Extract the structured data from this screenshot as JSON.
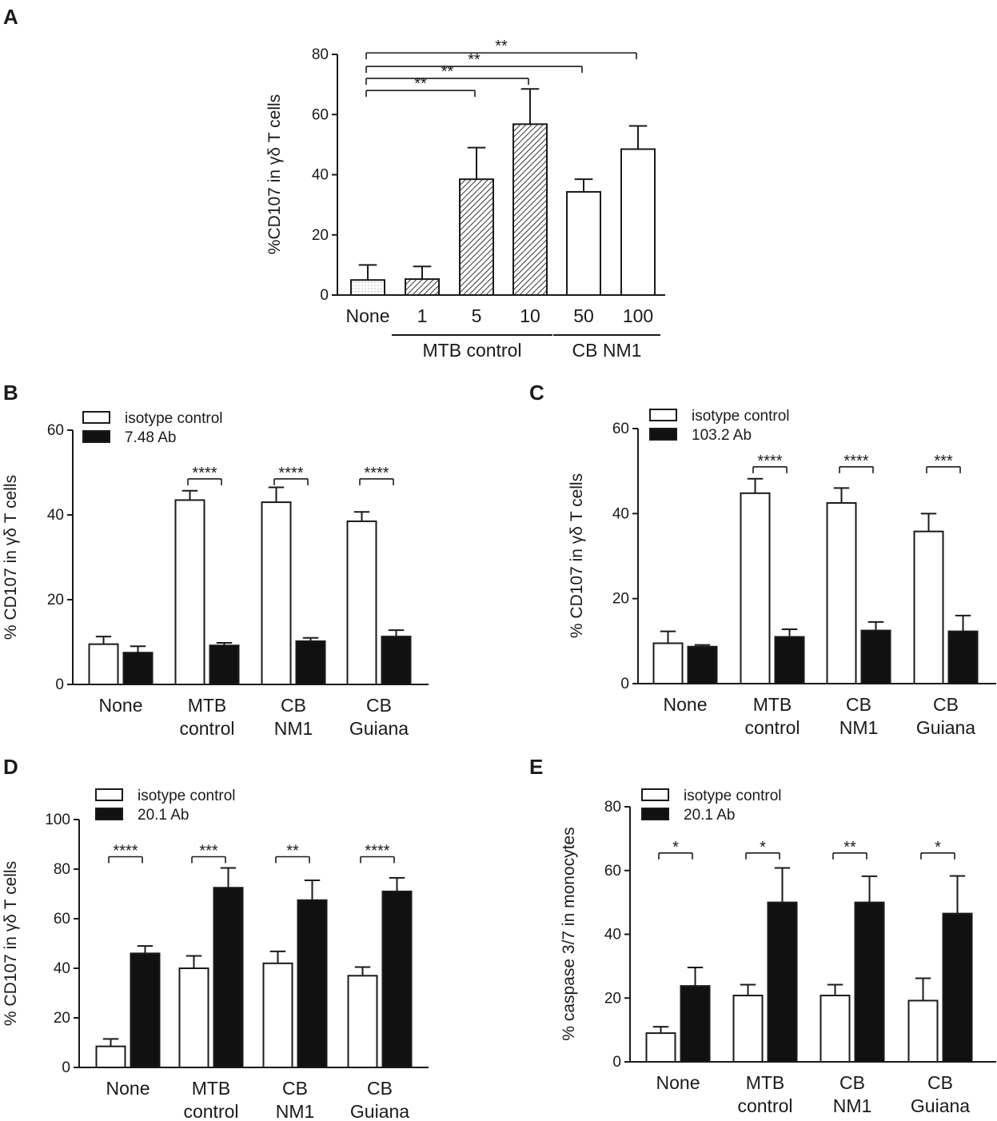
{
  "figure": {
    "panels": [
      "A",
      "B",
      "C",
      "D",
      "E"
    ]
  },
  "colors": {
    "ink": "#1a1a1a",
    "white_bar": "#ffffff",
    "black_bar": "#111111",
    "hatch": "#333333"
  },
  "chart_data": [
    {
      "panel": "A",
      "type": "bar",
      "ylabel": "%CD107 in γδ T cells",
      "ylim": [
        0,
        80
      ],
      "yticks": [
        0,
        20,
        40,
        60,
        80
      ],
      "categories": [
        "None",
        "1",
        "5",
        "10",
        "50",
        "100"
      ],
      "values": [
        5,
        5.3,
        38.5,
        56.8,
        34.3,
        48.5
      ],
      "errors": [
        5,
        4.2,
        10.5,
        11.7,
        4.2,
        7.7
      ],
      "fills": [
        "dotted",
        "hatch",
        "hatch",
        "hatch",
        "white",
        "white"
      ],
      "groups": [
        {
          "label": "MTB control",
          "from": 1,
          "to": 3
        },
        {
          "label": "CB NM1",
          "from": 4,
          "to": 5
        }
      ],
      "significance": [
        {
          "from": 0,
          "to": 2,
          "stars": "**",
          "level": 68
        },
        {
          "from": 0,
          "to": 3,
          "stars": "**",
          "level": 72
        },
        {
          "from": 0,
          "to": 4,
          "stars": "**",
          "level": 76
        },
        {
          "from": 0,
          "to": 5,
          "stars": "**",
          "level": 80.5
        }
      ]
    },
    {
      "panel": "B",
      "type": "bar",
      "ylabel": "% CD107 in γδ T cells",
      "ylim": [
        0,
        60
      ],
      "yticks": [
        0,
        20,
        40,
        60
      ],
      "categories": [
        [
          "None"
        ],
        [
          "MTB",
          "control"
        ],
        [
          "CB",
          "NM1"
        ],
        [
          "CB",
          "Guiana"
        ]
      ],
      "series": [
        {
          "name": "isotype control",
          "values": [
            9.5,
            43.5,
            43,
            38.5
          ],
          "errors": [
            1.8,
            2.2,
            3.5,
            2.2
          ]
        },
        {
          "name": "7.48 Ab",
          "values": [
            7.5,
            9.2,
            10.2,
            11.3
          ],
          "errors": [
            1.5,
            0.6,
            0.8,
            1.5
          ]
        }
      ],
      "significance": [
        {
          "group": 1,
          "stars": "****",
          "level": 48.5
        },
        {
          "group": 2,
          "stars": "****",
          "level": 48.5
        },
        {
          "group": 3,
          "stars": "****",
          "level": 48.5
        }
      ]
    },
    {
      "panel": "C",
      "type": "bar",
      "ylabel": "% CD107 in γδ T cells",
      "ylim": [
        0,
        60
      ],
      "yticks": [
        0,
        20,
        40,
        60
      ],
      "categories": [
        [
          "None"
        ],
        [
          "MTB",
          "control"
        ],
        [
          "CB",
          "NM1"
        ],
        [
          "CB",
          "Guiana"
        ]
      ],
      "series": [
        {
          "name": "isotype control",
          "values": [
            9.5,
            44.8,
            42.5,
            35.8
          ],
          "errors": [
            2.8,
            3.4,
            3.5,
            4.2
          ]
        },
        {
          "name": "103.2 Ab",
          "values": [
            8.7,
            11,
            12.5,
            12.3
          ],
          "errors": [
            0.4,
            1.8,
            2,
            3.7
          ]
        }
      ],
      "significance": [
        {
          "group": 1,
          "stars": "****",
          "level": 51
        },
        {
          "group": 2,
          "stars": "****",
          "level": 51
        },
        {
          "group": 3,
          "stars": "***",
          "level": 51
        }
      ]
    },
    {
      "panel": "D",
      "type": "bar",
      "ylabel": "% CD107 in γδ T cells",
      "ylim": [
        0,
        100
      ],
      "yticks": [
        0,
        20,
        40,
        60,
        80,
        100
      ],
      "categories": [
        [
          "None"
        ],
        [
          "MTB",
          "control"
        ],
        [
          "CB",
          "NM1"
        ],
        [
          "CB",
          "Guiana"
        ]
      ],
      "series": [
        {
          "name": "isotype control",
          "values": [
            8.5,
            40,
            42,
            37
          ],
          "errors": [
            3,
            5,
            4.8,
            3.5
          ]
        },
        {
          "name": "20.1 Ab",
          "values": [
            46,
            72.5,
            67.5,
            71
          ],
          "errors": [
            3,
            8,
            8,
            5.5
          ]
        }
      ],
      "significance": [
        {
          "group": 0,
          "stars": "****",
          "level": 85
        },
        {
          "group": 1,
          "stars": "***",
          "level": 85
        },
        {
          "group": 2,
          "stars": "**",
          "level": 85
        },
        {
          "group": 3,
          "stars": "****",
          "level": 85
        }
      ]
    },
    {
      "panel": "E",
      "type": "bar",
      "ylabel": "% caspase 3/7 in monocytes",
      "ylim": [
        0,
        80
      ],
      "yticks": [
        0,
        20,
        40,
        60,
        80
      ],
      "categories": [
        [
          "None"
        ],
        [
          "MTB",
          "control"
        ],
        [
          "CB",
          "NM1"
        ],
        [
          "CB",
          "Guiana"
        ]
      ],
      "series": [
        {
          "name": "isotype control",
          "values": [
            9,
            20.8,
            20.8,
            19.2
          ],
          "errors": [
            2,
            3.4,
            3.4,
            7
          ]
        },
        {
          "name": "20.1 Ab",
          "values": [
            23.8,
            50,
            50,
            46.5
          ],
          "errors": [
            5.8,
            10.8,
            8.2,
            11.8
          ]
        }
      ],
      "significance": [
        {
          "group": 0,
          "stars": "*",
          "level": 65.5
        },
        {
          "group": 1,
          "stars": "*",
          "level": 65.5
        },
        {
          "group": 2,
          "stars": "**",
          "level": 65.5
        },
        {
          "group": 3,
          "stars": "*",
          "level": 65.5
        }
      ]
    }
  ]
}
